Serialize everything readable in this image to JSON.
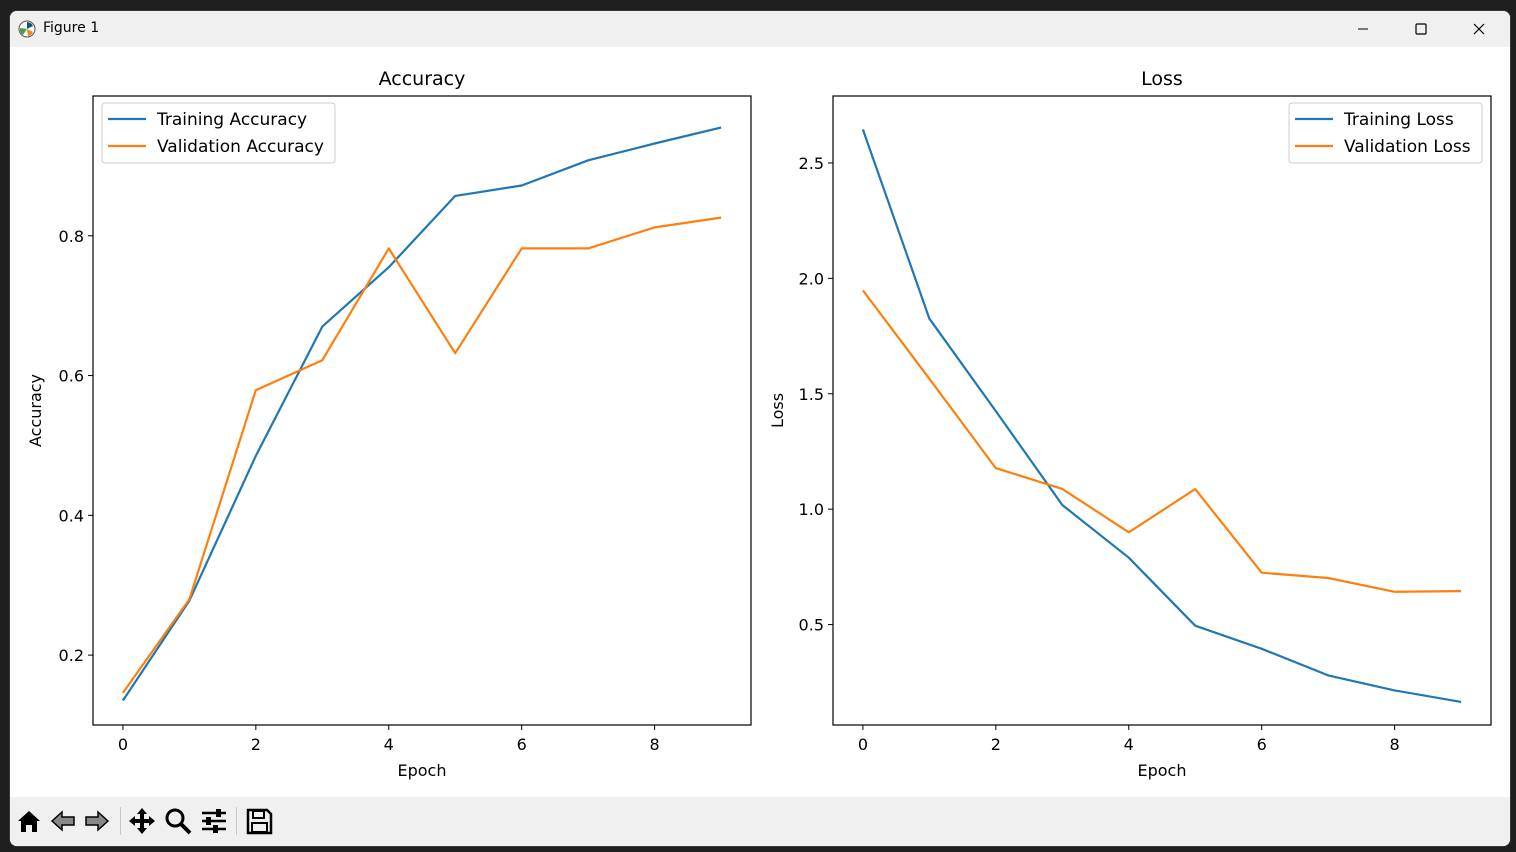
{
  "window": {
    "title": "Figure 1",
    "icons": {
      "app": "matplotlib-icon",
      "minimize": "minimize-icon",
      "maximize": "maximize-icon",
      "close": "close-icon"
    }
  },
  "toolbar": {
    "buttons": [
      {
        "id": "home",
        "icon": "home-icon"
      },
      {
        "id": "back",
        "icon": "back-arrow-icon"
      },
      {
        "id": "forward",
        "icon": "forward-arrow-icon"
      },
      {
        "id": "pan",
        "icon": "pan-icon"
      },
      {
        "id": "zoom",
        "icon": "zoom-icon"
      },
      {
        "id": "configure",
        "icon": "configure-subplots-icon"
      },
      {
        "id": "save",
        "icon": "save-icon"
      }
    ]
  },
  "colors": {
    "training": "#1f77b4",
    "validation": "#ff7f0e"
  },
  "chart_data": [
    {
      "type": "line",
      "title": "Accuracy",
      "xlabel": "Epoch",
      "ylabel": "Accuracy",
      "xlim": [
        -0.45,
        9.45
      ],
      "ylim": [
        0.1,
        1.0
      ],
      "xticks": [
        0,
        2,
        4,
        6,
        8
      ],
      "yticks": [
        0.2,
        0.4,
        0.6,
        0.8
      ],
      "legend_position": "upper-left",
      "grid": false,
      "x": [
        0,
        1,
        2,
        3,
        4,
        5,
        6,
        7,
        8,
        9
      ],
      "series": [
        {
          "name": "Training Accuracy",
          "color": "#1f77b4",
          "values": [
            0.135,
            0.278,
            0.485,
            0.67,
            0.755,
            0.857,
            0.872,
            0.908,
            0.932,
            0.955
          ]
        },
        {
          "name": "Validation Accuracy",
          "color": "#ff7f0e",
          "values": [
            0.146,
            0.28,
            0.579,
            0.622,
            0.782,
            0.632,
            0.782,
            0.782,
            0.812,
            0.826
          ]
        }
      ]
    },
    {
      "type": "line",
      "title": "Loss",
      "xlabel": "Epoch",
      "ylabel": "Loss",
      "xlim": [
        -0.45,
        9.45
      ],
      "ylim": [
        0.065,
        2.79
      ],
      "xticks": [
        0,
        2,
        4,
        6,
        8
      ],
      "yticks": [
        0.5,
        1.0,
        1.5,
        2.0,
        2.5
      ],
      "legend_position": "upper-right",
      "grid": false,
      "x": [
        0,
        1,
        2,
        3,
        4,
        5,
        6,
        7,
        8,
        9
      ],
      "series": [
        {
          "name": "Training Loss",
          "color": "#1f77b4",
          "values": [
            2.645,
            1.825,
            1.425,
            1.018,
            0.79,
            0.495,
            0.395,
            0.28,
            0.215,
            0.165
          ]
        },
        {
          "name": "Validation Loss",
          "color": "#ff7f0e",
          "values": [
            1.948,
            1.565,
            1.178,
            1.088,
            0.9,
            1.087,
            0.725,
            0.702,
            0.642,
            0.645
          ]
        }
      ]
    }
  ]
}
